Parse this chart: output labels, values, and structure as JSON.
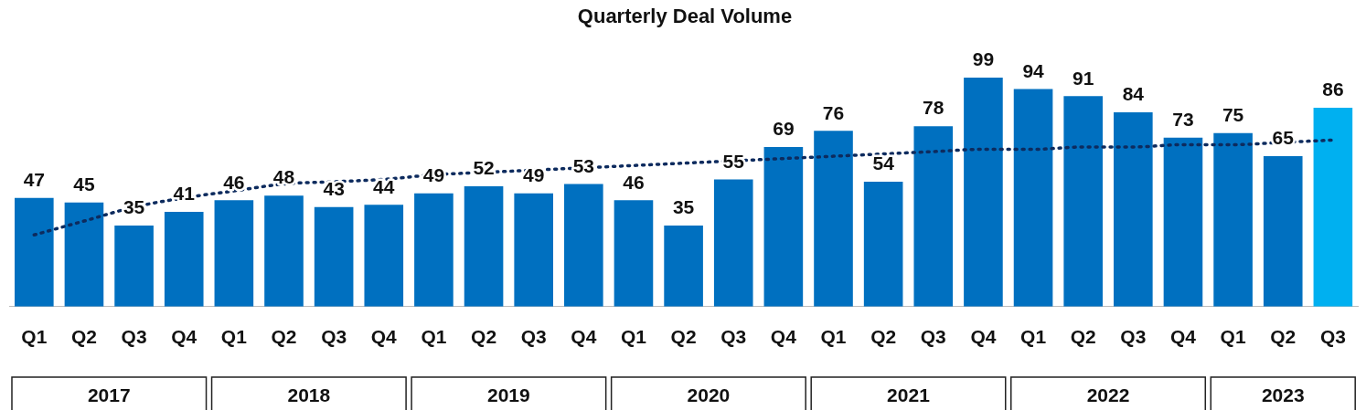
{
  "chart_data": {
    "type": "bar",
    "title": "Quarterly Deal Volume",
    "categories": [
      "Q1",
      "Q2",
      "Q3",
      "Q4",
      "Q1",
      "Q2",
      "Q3",
      "Q4",
      "Q1",
      "Q2",
      "Q3",
      "Q4",
      "Q1",
      "Q2",
      "Q3",
      "Q4",
      "Q1",
      "Q2",
      "Q3",
      "Q4",
      "Q1",
      "Q2",
      "Q3",
      "Q4",
      "Q1",
      "Q2",
      "Q3"
    ],
    "series": [
      {
        "values": [
          47,
          45,
          35,
          41,
          46,
          48,
          43,
          44,
          49,
          52,
          49,
          53,
          46,
          35,
          55,
          69,
          76,
          54,
          78,
          99,
          94,
          91,
          84,
          73,
          75,
          65,
          86
        ],
        "value_labels": [
          "47",
          "45",
          "35",
          "41",
          "46",
          "48",
          "43",
          "44",
          "49",
          "52",
          "49",
          "53",
          "46",
          "35",
          "55",
          "69",
          "76",
          "54",
          "78",
          "99",
          "94",
          "91",
          "84",
          "73",
          "75",
          "65",
          "86"
        ],
        "colors": [
          "#0070c0",
          "#0070c0",
          "#0070c0",
          "#0070c0",
          "#0070c0",
          "#0070c0",
          "#0070c0",
          "#0070c0",
          "#0070c0",
          "#0070c0",
          "#0070c0",
          "#0070c0",
          "#0070c0",
          "#0070c0",
          "#0070c0",
          "#0070c0",
          "#0070c0",
          "#0070c0",
          "#0070c0",
          "#0070c0",
          "#0070c0",
          "#0070c0",
          "#0070c0",
          "#0070c0",
          "#0070c0",
          "#0070c0",
          "#00b0f0"
        ]
      },
      {
        "type": "line",
        "color": "#0d2b5e",
        "line_style": "dotted",
        "marker": "none",
        "values": [
          31,
          37,
          43,
          47,
          50,
          53,
          54,
          55,
          57,
          58,
          59,
          60,
          61,
          62,
          63,
          64,
          65,
          66,
          67,
          68,
          68,
          69,
          69,
          70,
          70,
          71,
          72
        ]
      }
    ],
    "grid": false,
    "legend": false,
    "annotations": [
      "2017",
      "2018",
      "2019",
      "2020",
      "2021",
      "2022",
      "2023"
    ]
  }
}
